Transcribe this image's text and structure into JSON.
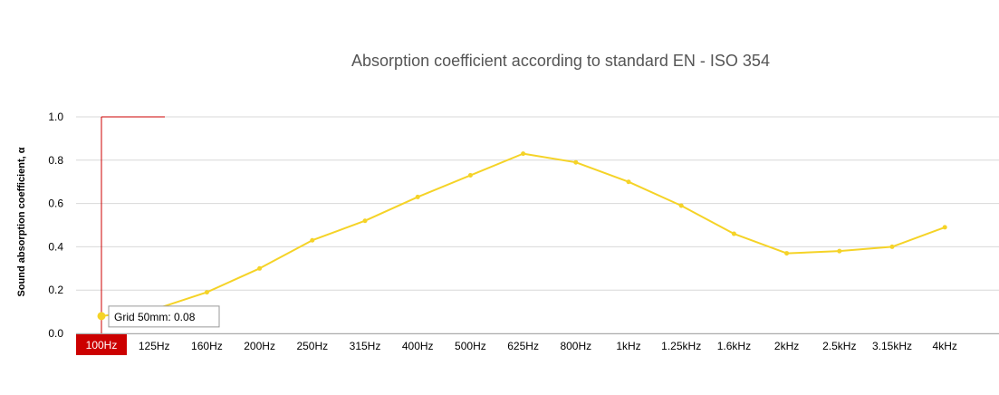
{
  "chart_data": {
    "type": "line",
    "title": "Absorption coefficient according to standard EN - ISO 354",
    "xlabel": "",
    "ylabel": "Sound absorption coefficient, α",
    "categories": [
      "100Hz",
      "125Hz",
      "160Hz",
      "200Hz",
      "250Hz",
      "315Hz",
      "400Hz",
      "500Hz",
      "625Hz",
      "800Hz",
      "1kHz",
      "1.25kHz",
      "1.6kHz",
      "2kHz",
      "2.5kHz",
      "3.15kHz",
      "4kHz"
    ],
    "ylim": [
      0,
      1
    ],
    "yticks": [
      "0.0",
      "0.2",
      "0.4",
      "0.6",
      "0.8",
      "1.0"
    ],
    "grid": true,
    "series": [
      {
        "name": "Grid 50mm",
        "color": "#f5d327",
        "values": [
          0.08,
          0.11,
          0.19,
          0.3,
          0.43,
          0.52,
          0.63,
          0.73,
          0.83,
          0.79,
          0.7,
          0.59,
          0.46,
          0.37,
          0.38,
          0.4,
          0.49
        ]
      }
    ],
    "highlight": {
      "category": "100Hz",
      "color": "#cc0000",
      "tooltip": "Grid 50mm: 0.08"
    }
  }
}
